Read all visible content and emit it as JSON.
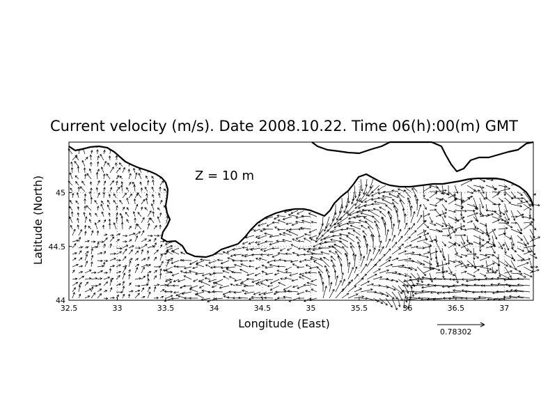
{
  "chart_data": {
    "type": "vector-field",
    "title": "Current velocity (m/s). Date 2008.10.22. Time 06(h):00(m) GMT",
    "xlabel": "Longitude (East)",
    "ylabel": "Latitude (North)",
    "depth_label": "Z = 10 m",
    "reference_vector": {
      "label": "0.78302",
      "magnitude": 0.78302
    },
    "xlim": [
      32.5,
      37.3
    ],
    "ylim": [
      44.0,
      45.47
    ],
    "x_ticks": [
      "32.5",
      "33",
      "33.5",
      "34",
      "34.5",
      "35",
      "35.5",
      "36",
      "36.5",
      "37"
    ],
    "y_ticks": [
      "44",
      "44.5",
      "45"
    ],
    "grid": true,
    "coastline_color": "#000000"
  }
}
